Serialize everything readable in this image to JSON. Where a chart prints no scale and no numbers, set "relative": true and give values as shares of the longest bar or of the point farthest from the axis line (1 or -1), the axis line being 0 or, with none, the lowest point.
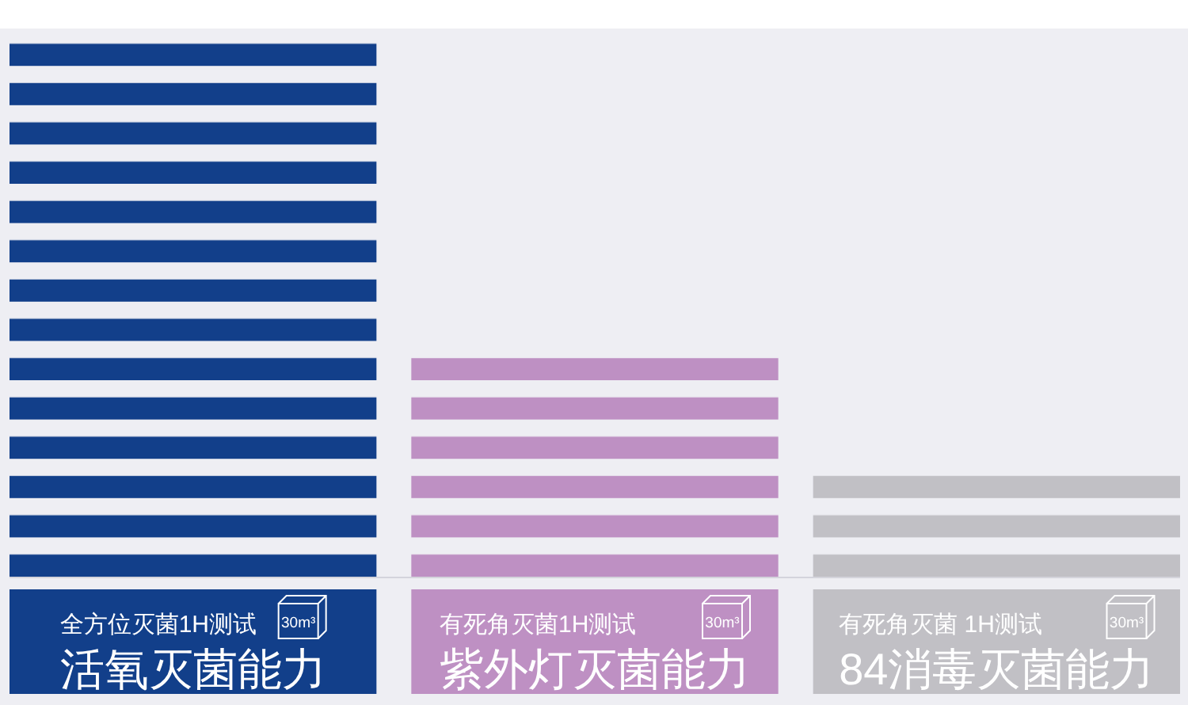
{
  "chart_data": {
    "type": "bar",
    "relative": true,
    "categories": [
      "活氧灭菌能力",
      "紫外灯灭菌能力",
      "84消毒灭菌能力"
    ],
    "values": [
      1,
      0.41,
      0.19
    ],
    "colors": [
      "#123f8a",
      "#be90c3",
      "#c1c0c5"
    ],
    "annotations": [
      "全方位灭菌1H测试",
      "30m³",
      "有死角灭菌1H测试",
      "30m³",
      "有死角灭菌 1H测试",
      "30m³"
    ]
  }
}
